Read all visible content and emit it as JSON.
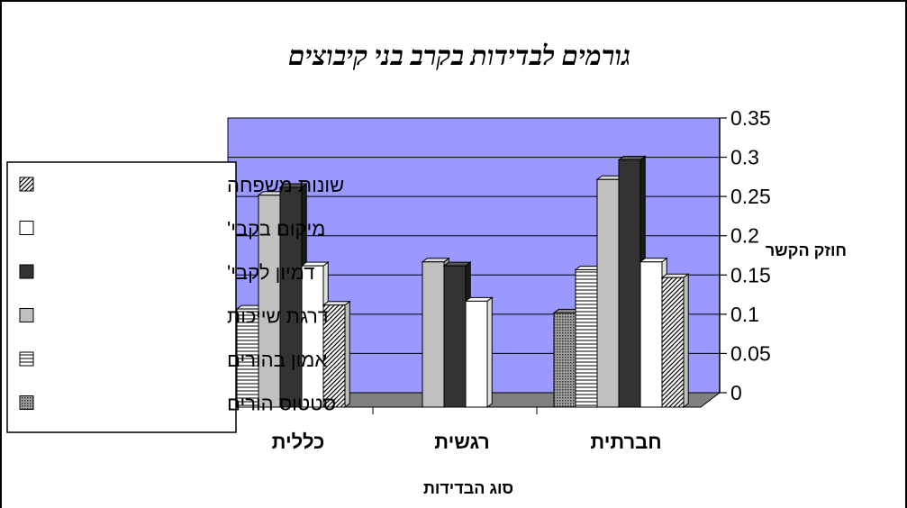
{
  "chart_data": {
    "type": "bar",
    "title": "גורמים לבדידות בקרב בני קיבוצים",
    "xlabel": "סוג הבדידות",
    "ylabel": "חוזק הקשר",
    "ylim": [
      0,
      0.35
    ],
    "yticks": [
      "0",
      "0.05",
      "0.1",
      "0.15",
      "0.2",
      "0.25",
      "0.3",
      "0.35"
    ],
    "categories": [
      "כללית",
      "רגשית",
      "חברתית"
    ],
    "grid": true,
    "legend_position": "left",
    "series": [
      {
        "name": "סטטוס הורים",
        "values": [
          null,
          null,
          0.12
        ],
        "pattern": "dots"
      },
      {
        "name": "אמון בהורים",
        "values": [
          0.125,
          null,
          0.175
        ],
        "pattern": "hlines"
      },
      {
        "name": "דרגת שייכות",
        "values": [
          0.27,
          0.185,
          0.29
        ],
        "pattern": "gray"
      },
      {
        "name": "דמיון לקבי'",
        "values": [
          0.28,
          0.18,
          0.315
        ],
        "pattern": "dark"
      },
      {
        "name": "מיקום בקבי'",
        "values": [
          0.18,
          0.135,
          0.185
        ],
        "pattern": "white"
      },
      {
        "name": "שונות משפחה",
        "values": [
          0.13,
          null,
          0.165
        ],
        "pattern": "diag"
      }
    ],
    "colors": {
      "wall": "#9999ff",
      "floor": "#808080",
      "gray": "#c0c0c0",
      "dark": "#333333",
      "white": "#ffffff",
      "outline": "#000000"
    }
  }
}
